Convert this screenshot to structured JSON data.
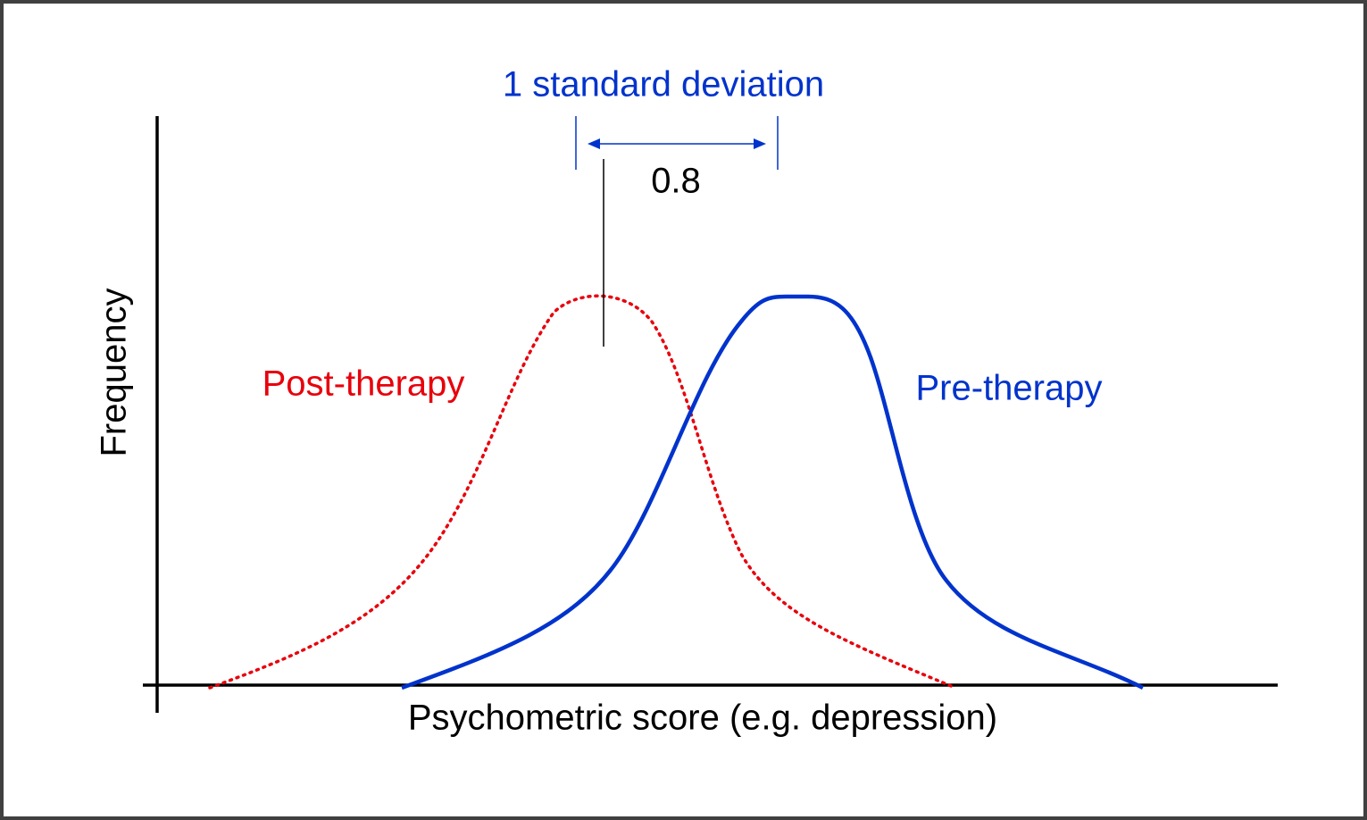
{
  "sd_label": "1 standard deviation",
  "effect_size": "0.8",
  "y_axis_label": "Frequency",
  "post_label": "Post-therapy",
  "pre_label": "Pre-therapy",
  "x_axis_label": "Psychometric score (e.g. depression)"
}
